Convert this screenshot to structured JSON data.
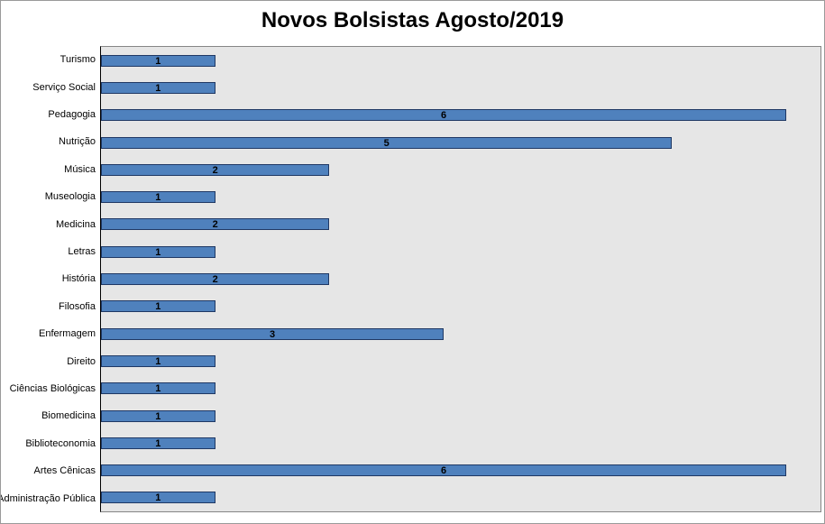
{
  "chart_data": {
    "type": "bar",
    "orientation": "horizontal",
    "title": "Novos Bolsistas Agosto/2019",
    "categories": [
      "Turismo",
      "Serviço Social",
      "Pedagogia",
      "Nutrição",
      "Música",
      "Museologia",
      "Medicina",
      "Letras",
      "História",
      "Filosofia",
      "Enfermagem",
      "Direito",
      "Ciências Biológicas",
      "Biomedicina",
      "Biblioteconomia",
      "Artes Cênicas",
      "Administração Pública"
    ],
    "values": [
      1,
      1,
      6,
      5,
      2,
      1,
      2,
      1,
      2,
      1,
      3,
      1,
      1,
      1,
      1,
      6,
      1
    ],
    "xlabel": "",
    "ylabel": "",
    "xlim": [
      0,
      6.3
    ],
    "grid": false,
    "legend": "none",
    "data_labels": "center",
    "bar_color": "#4F81BD",
    "bar_border_color": "#1F3864",
    "plot_bg": "#E6E6E6",
    "axis_line_color": "#000000"
  }
}
